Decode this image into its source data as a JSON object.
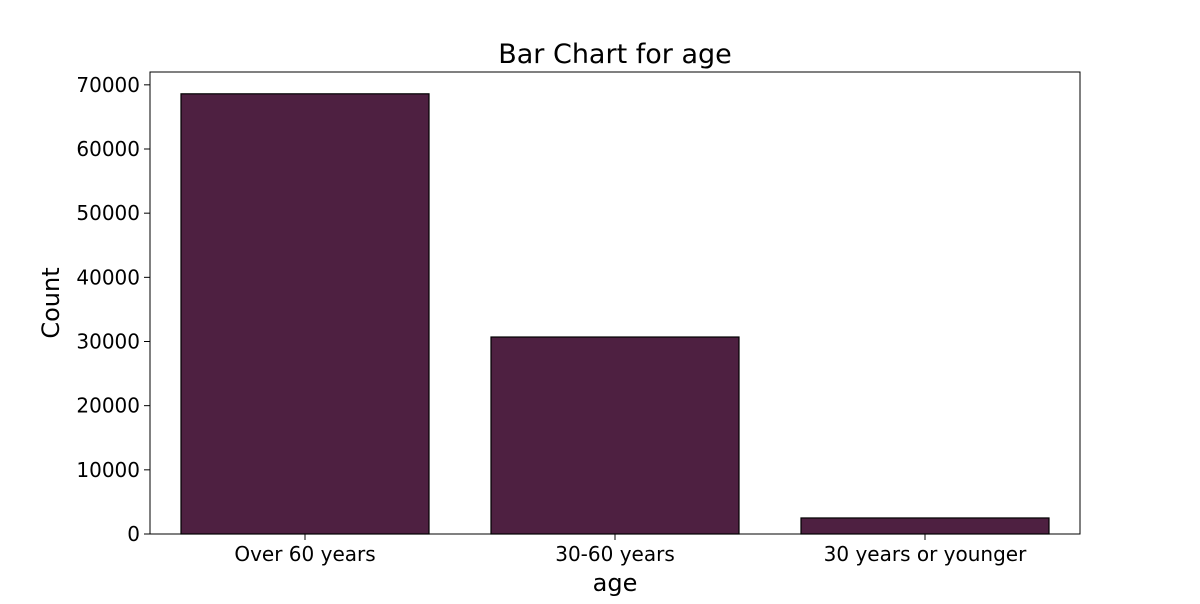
{
  "chart_data": {
    "type": "bar",
    "title": "Bar Chart for age",
    "xlabel": "age",
    "ylabel": "Count",
    "categories": [
      "Over 60 years",
      "30-60 years",
      "30 years or younger"
    ],
    "values": [
      68600,
      30700,
      2500
    ],
    "ylim": [
      0,
      72000
    ],
    "yticks": [
      0,
      10000,
      20000,
      30000,
      40000,
      50000,
      60000,
      70000
    ],
    "ytick_labels": [
      "0",
      "10000",
      "20000",
      "30000",
      "40000",
      "50000",
      "60000",
      "70000"
    ],
    "grid": false,
    "legend": "none",
    "colors": {
      "bar_fill": "#4e2041",
      "bar_edge": "#000000",
      "axis": "#000000",
      "background": "#ffffff"
    }
  }
}
